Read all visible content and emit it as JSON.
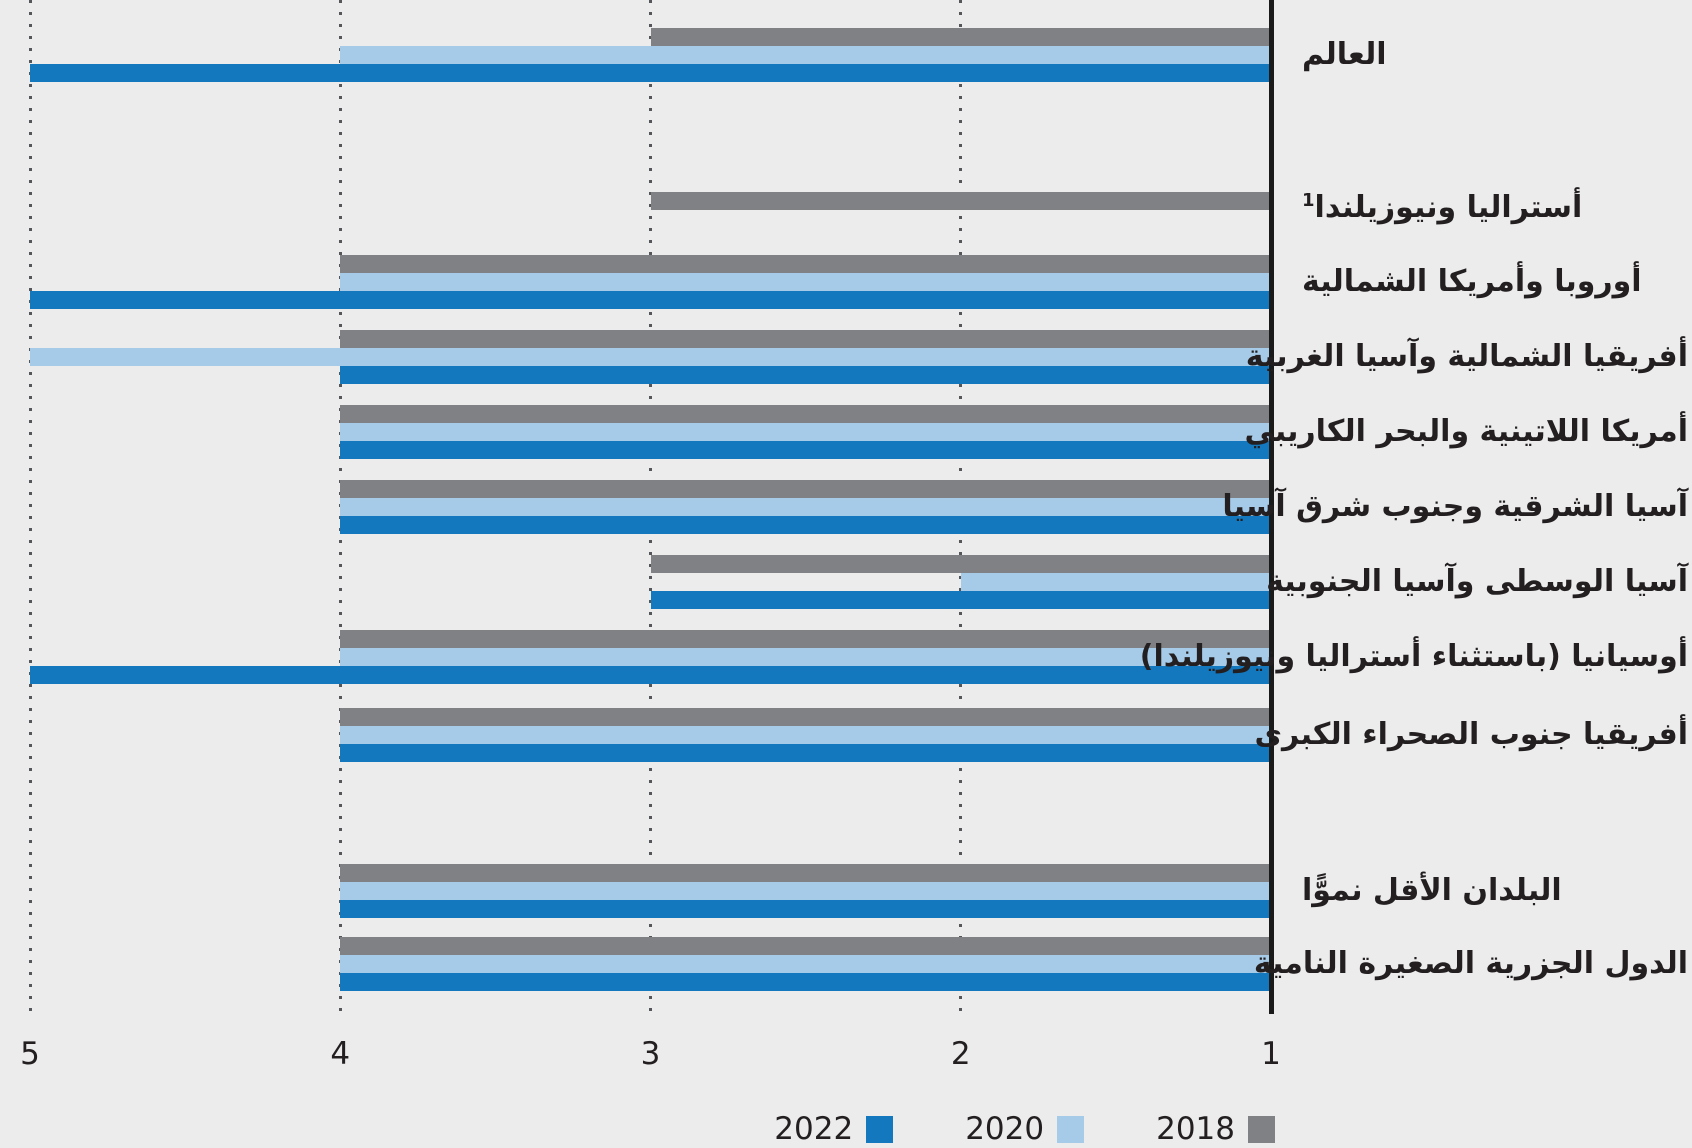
{
  "colors": {
    "series_2022": "#1478bf",
    "series_2020": "#a6cbe9",
    "series_2018": "#808184",
    "axis_line": "#1a1a1a",
    "gridline": "#55565a",
    "text": "#231f20",
    "background": "#ececec"
  },
  "chart_data": {
    "type": "bar",
    "orientation": "horizontal",
    "direction": "rtl",
    "title": "",
    "xlabel": "",
    "ylabel": "",
    "x_axis": {
      "min": 1,
      "max": 5,
      "tick_values": [
        5,
        4,
        3,
        2,
        1
      ],
      "tick_labels": [
        "5",
        "4",
        "3",
        "2",
        "1"
      ],
      "grid": "dotted-vertical",
      "baseline_value": 1
    },
    "legend": {
      "position": "bottom-right",
      "items": [
        {
          "label": "2022",
          "color_key": "series_2022"
        },
        {
          "label": "2020",
          "color_key": "series_2020"
        },
        {
          "label": "2018",
          "color_key": "series_2018"
        }
      ]
    },
    "categories": [
      {
        "label": "العالم",
        "sup": ""
      },
      {
        "label": "أستراليا ونيوزيلندا",
        "sup": "1"
      },
      {
        "label": "أوروبا وأمريكا الشمالية",
        "sup": ""
      },
      {
        "label": "أفريقيا الشمالية وآسيا الغربية",
        "sup": ""
      },
      {
        "label": "أمريكا اللاتينية والبحر الكاريبي",
        "sup": ""
      },
      {
        "label": "آسيا الشرقية وجنوب شرق آسيا",
        "sup": ""
      },
      {
        "label": "آسيا الوسطى وآسيا الجنوبية",
        "sup": ""
      },
      {
        "label": "أوسيانيا (باستثناء أستراليا ونيوزيلندا)",
        "sup": ""
      },
      {
        "label": "أفريقيا جنوب الصحراء الكبرى",
        "sup": ""
      },
      {
        "label": "البلدان الأقل نموًّا",
        "sup": ""
      },
      {
        "label": "الدول الجزرية الصغيرة النامية",
        "sup": ""
      }
    ],
    "series": [
      {
        "name": "2018",
        "color_key": "series_2018",
        "values": [
          3,
          3,
          4,
          4,
          4,
          4,
          3,
          4,
          4,
          4,
          4
        ]
      },
      {
        "name": "2020",
        "color_key": "series_2020",
        "values": [
          4,
          null,
          4,
          5,
          4,
          4,
          2,
          4,
          4,
          4,
          4
        ]
      },
      {
        "name": "2022",
        "color_key": "series_2022",
        "values": [
          5,
          null,
          5,
          4,
          4,
          4,
          3,
          5,
          4,
          4,
          4
        ]
      }
    ]
  }
}
